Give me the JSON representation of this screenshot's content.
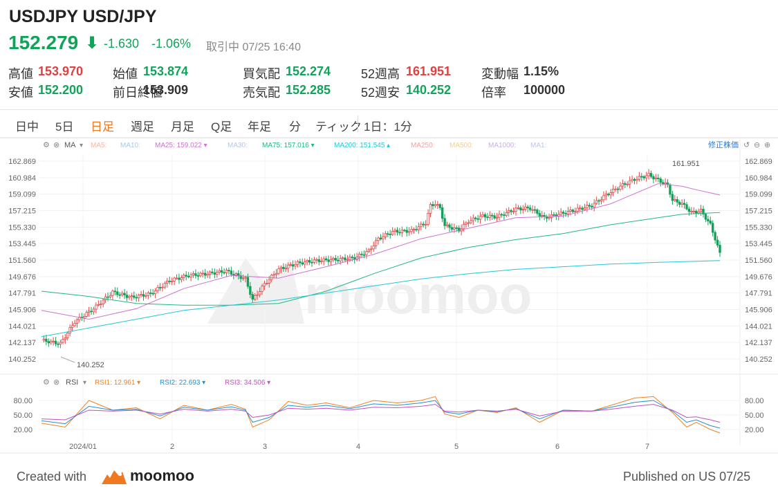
{
  "header": {
    "title": "USDJPY USD/JPY",
    "price": "152.279",
    "change": "-1.630",
    "change_pct": "-1.06%",
    "status": "取引中 07/25 16:40"
  },
  "stats": [
    {
      "label": "高値",
      "value": "153.970",
      "color": "#e04040"
    },
    {
      "label": "安値",
      "value": "152.200",
      "color": "#11a35a"
    },
    {
      "label": "始値",
      "value": "153.874",
      "color": "#11a35a"
    },
    {
      "label": "前日終値",
      "value": "153.909",
      "color": "#333333"
    },
    {
      "label": "買気配",
      "value": "152.274",
      "color": "#11a35a"
    },
    {
      "label": "売気配",
      "value": "152.285",
      "color": "#11a35a"
    },
    {
      "label": "52週高",
      "value": "161.951",
      "color": "#e04040"
    },
    {
      "label": "52週安",
      "value": "140.252",
      "color": "#11a35a"
    },
    {
      "label": "変動幅",
      "value": "1.15%",
      "color": "#333333"
    },
    {
      "label": "倍率",
      "value": "100000",
      "color": "#333333"
    }
  ],
  "tabs": [
    "日中",
    "5日",
    "日足",
    "週足",
    "月足",
    "Q足",
    "年足",
    "分",
    "ティック"
  ],
  "active_tab": "日足",
  "interval": "1日：1分",
  "indicators": {
    "ma_label": "MA",
    "items": [
      {
        "text": "MA5:",
        "color": "#f4b6a0"
      },
      {
        "text": "MA10:",
        "color": "#a8c8f0"
      },
      {
        "text": "MA25: 159.022 ▾",
        "color": "#d070d0"
      },
      {
        "text": "MA30:",
        "color": "#b8c8e0"
      },
      {
        "text": "MA75: 157.016 ▾",
        "color": "#20b880"
      },
      {
        "text": "MA200: 151.545 ▴",
        "color": "#20c8d8"
      },
      {
        "text": "MA250:",
        "color": "#f4a0a0"
      },
      {
        "text": "MA500:",
        "color": "#f0d090"
      },
      {
        "text": "MA1000:",
        "color": "#c8b0e0"
      },
      {
        "text": "MA1:",
        "color": "#b8c8e0"
      }
    ],
    "adjust": "修正株価"
  },
  "rsi": {
    "label": "RSI",
    "items": [
      {
        "text": "RSI1: 12.961 ▾",
        "color": "#f08020"
      },
      {
        "text": "RSI2: 22.693 ▾",
        "color": "#2090d0"
      },
      {
        "text": "RSI3: 34.506 ▾",
        "color": "#c050c0"
      }
    ],
    "ticks": [
      "80.00",
      "50.00",
      "20.00"
    ]
  },
  "chart_data": {
    "type": "candlestick",
    "y_ticks": [
      "162.869",
      "160.984",
      "159.099",
      "157.215",
      "155.330",
      "153.445",
      "151.560",
      "149.676",
      "147.791",
      "145.906",
      "144.021",
      "142.137",
      "140.252"
    ],
    "ylim": [
      140.252,
      162.869
    ],
    "x_ticks": [
      "2024/01",
      "2",
      "3",
      "4",
      "5",
      "6",
      "7"
    ],
    "annotations": {
      "high": "161.951",
      "low": "140.252"
    },
    "close_path": [
      [
        0,
        142.4
      ],
      [
        8,
        142.0
      ],
      [
        14,
        144.5
      ],
      [
        22,
        146.0
      ],
      [
        30,
        147.9
      ],
      [
        38,
        147.3
      ],
      [
        46,
        147.7
      ],
      [
        54,
        149.2
      ],
      [
        62,
        149.8
      ],
      [
        70,
        150.0
      ],
      [
        78,
        150.3
      ],
      [
        86,
        149.4
      ],
      [
        89,
        147.0
      ],
      [
        94,
        148.8
      ],
      [
        100,
        150.5
      ],
      [
        108,
        151.2
      ],
      [
        116,
        151.5
      ],
      [
        124,
        151.6
      ],
      [
        132,
        151.8
      ],
      [
        138,
        152.6
      ],
      [
        142,
        154.0
      ],
      [
        148,
        154.8
      ],
      [
        156,
        154.9
      ],
      [
        162,
        155.8
      ],
      [
        164,
        157.8
      ],
      [
        166,
        158.0
      ],
      [
        168,
        157.5
      ],
      [
        170,
        155.5
      ],
      [
        176,
        155.0
      ],
      [
        180,
        156.0
      ],
      [
        186,
        156.6
      ],
      [
        192,
        156.5
      ],
      [
        200,
        157.4
      ],
      [
        206,
        157.5
      ],
      [
        212,
        156.4
      ],
      [
        218,
        156.8
      ],
      [
        224,
        157.2
      ],
      [
        232,
        157.8
      ],
      [
        238,
        159.0
      ],
      [
        244,
        160.0
      ],
      [
        250,
        160.8
      ],
      [
        256,
        161.3
      ],
      [
        260,
        160.7
      ],
      [
        264,
        160.1
      ],
      [
        266,
        158.4
      ],
      [
        270,
        158.0
      ],
      [
        274,
        157.0
      ],
      [
        278,
        157.2
      ],
      [
        282,
        155.6
      ],
      [
        284,
        154.0
      ],
      [
        286,
        152.3
      ]
    ],
    "ma_series": [
      {
        "name": "MA25",
        "color": "#d070d0",
        "points": [
          [
            0,
            145.8
          ],
          [
            20,
            144.8
          ],
          [
            40,
            146.0
          ],
          [
            60,
            148.3
          ],
          [
            80,
            149.8
          ],
          [
            100,
            149.5
          ],
          [
            120,
            150.8
          ],
          [
            140,
            152.2
          ],
          [
            160,
            154.0
          ],
          [
            180,
            155.2
          ],
          [
            200,
            156.4
          ],
          [
            220,
            156.6
          ],
          [
            240,
            158.0
          ],
          [
            260,
            160.3
          ],
          [
            270,
            160.0
          ],
          [
            276,
            159.6
          ],
          [
            286,
            159.0
          ]
        ]
      },
      {
        "name": "MA75",
        "color": "#20b880",
        "points": [
          [
            0,
            148.0
          ],
          [
            20,
            147.4
          ],
          [
            40,
            146.6
          ],
          [
            60,
            146.4
          ],
          [
            80,
            146.4
          ],
          [
            100,
            146.6
          ],
          [
            120,
            148.0
          ],
          [
            140,
            150.0
          ],
          [
            160,
            151.8
          ],
          [
            180,
            153.0
          ],
          [
            200,
            153.9
          ],
          [
            220,
            154.6
          ],
          [
            240,
            155.6
          ],
          [
            260,
            156.4
          ],
          [
            270,
            156.8
          ],
          [
            286,
            157.0
          ]
        ]
      },
      {
        "name": "MA200",
        "color": "#20c8d8",
        "points": [
          [
            0,
            142.8
          ],
          [
            20,
            143.8
          ],
          [
            40,
            144.8
          ],
          [
            60,
            145.8
          ],
          [
            80,
            146.4
          ],
          [
            100,
            147.0
          ],
          [
            120,
            147.8
          ],
          [
            140,
            148.6
          ],
          [
            160,
            149.4
          ],
          [
            180,
            150.0
          ],
          [
            200,
            150.5
          ],
          [
            220,
            150.8
          ],
          [
            240,
            151.1
          ],
          [
            260,
            151.3
          ],
          [
            286,
            151.5
          ]
        ]
      }
    ],
    "rsi_series": [
      {
        "name": "RSI1",
        "color": "#f08020",
        "points": [
          [
            0,
            33
          ],
          [
            10,
            25
          ],
          [
            20,
            80
          ],
          [
            30,
            60
          ],
          [
            40,
            65
          ],
          [
            50,
            42
          ],
          [
            60,
            70
          ],
          [
            70,
            60
          ],
          [
            80,
            72
          ],
          [
            86,
            62
          ],
          [
            89,
            25
          ],
          [
            96,
            40
          ],
          [
            104,
            78
          ],
          [
            112,
            70
          ],
          [
            120,
            75
          ],
          [
            130,
            65
          ],
          [
            140,
            80
          ],
          [
            150,
            75
          ],
          [
            160,
            80
          ],
          [
            166,
            88
          ],
          [
            170,
            52
          ],
          [
            176,
            45
          ],
          [
            184,
            60
          ],
          [
            192,
            55
          ],
          [
            200,
            65
          ],
          [
            210,
            35
          ],
          [
            220,
            60
          ],
          [
            232,
            58
          ],
          [
            240,
            70
          ],
          [
            250,
            85
          ],
          [
            258,
            88
          ],
          [
            266,
            55
          ],
          [
            272,
            25
          ],
          [
            276,
            35
          ],
          [
            282,
            20
          ],
          [
            286,
            13
          ]
        ]
      },
      {
        "name": "RSI2",
        "color": "#2090d0",
        "points": [
          [
            0,
            38
          ],
          [
            10,
            32
          ],
          [
            20,
            68
          ],
          [
            30,
            60
          ],
          [
            40,
            62
          ],
          [
            50,
            48
          ],
          [
            60,
            66
          ],
          [
            70,
            60
          ],
          [
            80,
            67
          ],
          [
            86,
            60
          ],
          [
            89,
            35
          ],
          [
            96,
            45
          ],
          [
            104,
            70
          ],
          [
            112,
            66
          ],
          [
            120,
            70
          ],
          [
            130,
            63
          ],
          [
            140,
            73
          ],
          [
            150,
            70
          ],
          [
            160,
            75
          ],
          [
            166,
            80
          ],
          [
            170,
            56
          ],
          [
            176,
            52
          ],
          [
            184,
            60
          ],
          [
            192,
            57
          ],
          [
            200,
            63
          ],
          [
            210,
            42
          ],
          [
            220,
            60
          ],
          [
            232,
            58
          ],
          [
            240,
            66
          ],
          [
            250,
            76
          ],
          [
            258,
            80
          ],
          [
            266,
            58
          ],
          [
            272,
            35
          ],
          [
            276,
            40
          ],
          [
            282,
            28
          ],
          [
            286,
            23
          ]
        ]
      },
      {
        "name": "RSI3",
        "color": "#c050c0",
        "points": [
          [
            0,
            42
          ],
          [
            10,
            40
          ],
          [
            20,
            60
          ],
          [
            30,
            58
          ],
          [
            40,
            60
          ],
          [
            50,
            52
          ],
          [
            60,
            62
          ],
          [
            70,
            58
          ],
          [
            80,
            62
          ],
          [
            86,
            58
          ],
          [
            89,
            45
          ],
          [
            96,
            50
          ],
          [
            104,
            64
          ],
          [
            112,
            62
          ],
          [
            120,
            64
          ],
          [
            130,
            60
          ],
          [
            140,
            66
          ],
          [
            150,
            65
          ],
          [
            160,
            68
          ],
          [
            166,
            72
          ],
          [
            170,
            58
          ],
          [
            176,
            56
          ],
          [
            184,
            60
          ],
          [
            192,
            58
          ],
          [
            200,
            62
          ],
          [
            210,
            48
          ],
          [
            220,
            58
          ],
          [
            232,
            58
          ],
          [
            240,
            62
          ],
          [
            250,
            68
          ],
          [
            258,
            72
          ],
          [
            266,
            60
          ],
          [
            272,
            45
          ],
          [
            276,
            46
          ],
          [
            282,
            40
          ],
          [
            286,
            35
          ]
        ]
      }
    ]
  },
  "watermark": "moomoo",
  "footer": {
    "created_prefix": "Created with",
    "brand": "moomoo",
    "published": "Published on US 07/25"
  }
}
